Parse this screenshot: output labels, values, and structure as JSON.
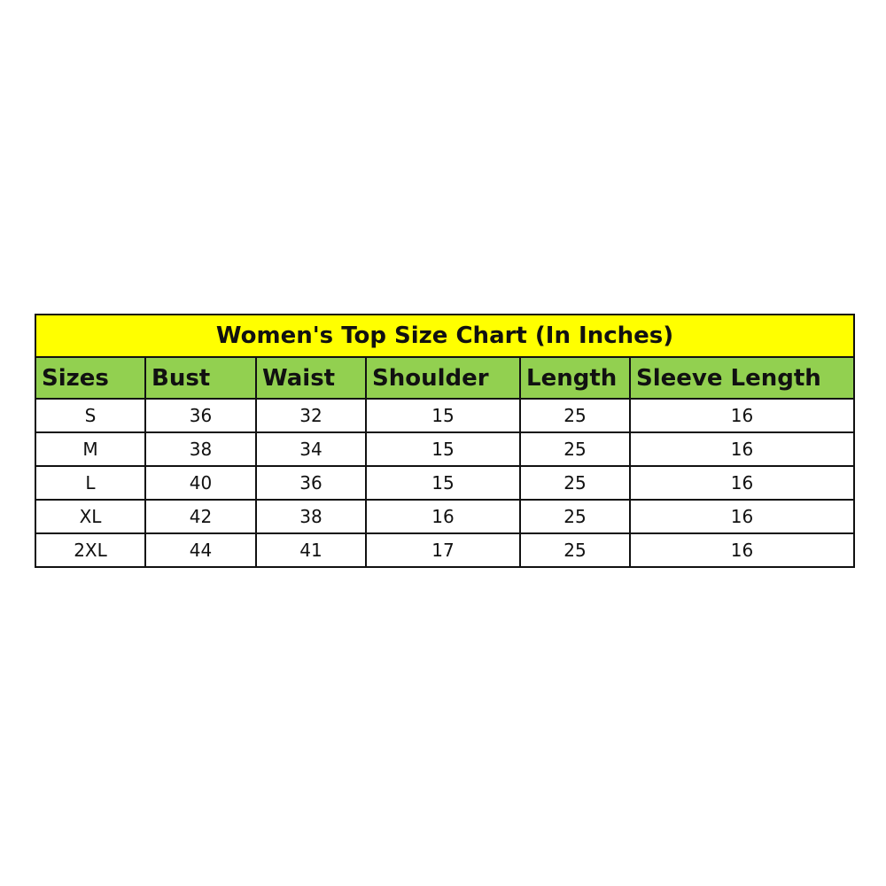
{
  "title": "Women's Top Size Chart (In Inches)",
  "colors": {
    "title_bg": "#ffff00",
    "header_bg": "#92d050"
  },
  "headers": [
    "Sizes",
    "Bust",
    "Waist",
    "Shoulder",
    "Length",
    "Sleeve Length"
  ],
  "rows": [
    [
      "S",
      "36",
      "32",
      "15",
      "25",
      "16"
    ],
    [
      "M",
      "38",
      "34",
      "15",
      "25",
      "16"
    ],
    [
      "L",
      "40",
      "36",
      "15",
      "25",
      "16"
    ],
    [
      "XL",
      "42",
      "38",
      "16",
      "25",
      "16"
    ],
    [
      "2XL",
      "44",
      "41",
      "17",
      "25",
      "16"
    ]
  ]
}
